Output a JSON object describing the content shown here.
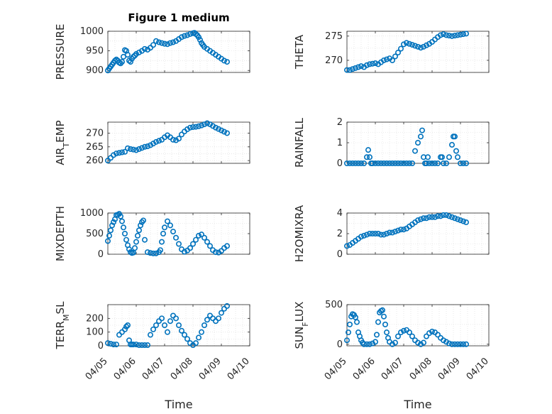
{
  "figure": {
    "title": "Figure 1 medium",
    "marker_color": "#0072BD",
    "grid_color": "#d9d9d9",
    "axis_color": "#262626"
  },
  "x_ticks": [
    "04/05",
    "04/06",
    "04/07",
    "04/08",
    "04/09",
    "04/10"
  ],
  "x_label": "Time",
  "chart_data": [
    {
      "type": "scatter",
      "ylabel": "PRESSURE",
      "ylim": [
        895,
        1000
      ],
      "yticks": [
        900,
        950,
        1000
      ],
      "xlim": [
        0,
        5
      ],
      "x": [
        0,
        0.05,
        0.1,
        0.15,
        0.2,
        0.25,
        0.3,
        0.35,
        0.4,
        0.45,
        0.5,
        0.55,
        0.6,
        0.65,
        0.7,
        0.75,
        0.8,
        0.85,
        0.9,
        0.95,
        1.0,
        1.1,
        1.2,
        1.3,
        1.4,
        1.5,
        1.6,
        1.7,
        1.8,
        1.9,
        2.0,
        2.1,
        2.2,
        2.3,
        2.4,
        2.5,
        2.6,
        2.7,
        2.8,
        2.9,
        3.0,
        3.05,
        3.1,
        3.15,
        3.2,
        3.25,
        3.3,
        3.35,
        3.4,
        3.5,
        3.6,
        3.7,
        3.8,
        3.9,
        4.0,
        4.1,
        4.2
      ],
      "y": [
        900,
        905,
        910,
        915,
        920,
        925,
        928,
        925,
        920,
        918,
        922,
        935,
        952,
        950,
        940,
        925,
        922,
        930,
        935,
        938,
        942,
        946,
        950,
        955,
        953,
        958,
        965,
        975,
        972,
        970,
        968,
        967,
        970,
        972,
        975,
        980,
        985,
        988,
        990,
        993,
        995,
        996,
        993,
        990,
        985,
        978,
        970,
        965,
        960,
        955,
        950,
        945,
        940,
        935,
        930,
        925,
        922
      ]
    },
    {
      "type": "scatter",
      "ylabel": "THETA",
      "ylim": [
        267.5,
        276
      ],
      "yticks": [
        270,
        275
      ],
      "xlim": [
        0,
        5
      ],
      "x": [
        0,
        0.1,
        0.2,
        0.3,
        0.4,
        0.5,
        0.6,
        0.7,
        0.8,
        0.9,
        1.0,
        1.1,
        1.2,
        1.3,
        1.4,
        1.5,
        1.6,
        1.7,
        1.8,
        1.9,
        2.0,
        2.1,
        2.2,
        2.3,
        2.4,
        2.5,
        2.6,
        2.7,
        2.8,
        2.9,
        3.0,
        3.1,
        3.2,
        3.3,
        3.4,
        3.5,
        3.6,
        3.7,
        3.8,
        3.9,
        4.0,
        4.1,
        4.2
      ],
      "y": [
        268,
        268,
        268.2,
        268.4,
        268.6,
        268.8,
        268.6,
        269,
        269.2,
        269.3,
        269.4,
        269.2,
        269.6,
        270,
        270.2,
        270.4,
        270,
        270.8,
        271.6,
        272.4,
        273.3,
        273.6,
        273.4,
        273.2,
        273,
        272.8,
        272.6,
        272.8,
        273.1,
        273.4,
        273.8,
        274.3,
        274.8,
        275.2,
        275.4,
        275.2,
        275.1,
        275,
        275.1,
        275.2,
        275.3,
        275.4,
        275.5
      ]
    },
    {
      "type": "scatter",
      "ylabel": "AIR_TEMP",
      "ylim": [
        259,
        274
      ],
      "yticks": [
        260,
        265,
        270
      ],
      "xlim": [
        0,
        5
      ],
      "x": [
        0,
        0.1,
        0.2,
        0.3,
        0.4,
        0.5,
        0.6,
        0.7,
        0.8,
        0.9,
        1.0,
        1.1,
        1.2,
        1.3,
        1.4,
        1.5,
        1.6,
        1.7,
        1.8,
        1.9,
        2.0,
        2.1,
        2.2,
        2.3,
        2.4,
        2.5,
        2.6,
        2.7,
        2.8,
        2.9,
        3.0,
        3.1,
        3.2,
        3.3,
        3.4,
        3.5,
        3.6,
        3.7,
        3.8,
        3.9,
        4.0,
        4.1,
        4.2
      ],
      "y": [
        260,
        261,
        262,
        262.6,
        262.8,
        263,
        263.2,
        264.5,
        264.2,
        264,
        263.8,
        264.2,
        264.6,
        265,
        265.2,
        265.6,
        266.2,
        266.8,
        267.2,
        267.6,
        268.5,
        269.2,
        268.5,
        267.6,
        267.4,
        268,
        269.5,
        270.6,
        271.4,
        272,
        272.2,
        272.3,
        272.5,
        272.8,
        273.2,
        273.6,
        273.2,
        272.6,
        272,
        271.5,
        271,
        270.5,
        270
      ]
    },
    {
      "type": "scatter",
      "ylabel": "RAINFALL",
      "ylim": [
        0,
        2
      ],
      "yticks": [
        0,
        1,
        2
      ],
      "xlim": [
        0,
        5
      ],
      "x": [
        0,
        0.1,
        0.2,
        0.3,
        0.4,
        0.5,
        0.6,
        0.7,
        0.75,
        0.8,
        0.85,
        0.9,
        1.0,
        1.1,
        1.2,
        1.3,
        1.4,
        1.5,
        1.6,
        1.7,
        1.8,
        1.9,
        2.0,
        2.1,
        2.2,
        2.3,
        2.4,
        2.5,
        2.6,
        2.65,
        2.7,
        2.75,
        2.8,
        2.85,
        2.9,
        3.0,
        3.1,
        3.2,
        3.3,
        3.35,
        3.4,
        3.5,
        3.6,
        3.7,
        3.75,
        3.8,
        3.85,
        3.9,
        4.0,
        4.1,
        4.2
      ],
      "y": [
        0,
        0,
        0,
        0,
        0,
        0,
        0,
        0.3,
        0.65,
        0.3,
        0,
        0,
        0,
        0,
        0,
        0,
        0,
        0,
        0,
        0,
        0,
        0,
        0,
        0,
        0,
        0,
        0.6,
        1.0,
        1.3,
        1.6,
        0.3,
        0,
        0,
        0.3,
        0,
        0,
        0,
        0,
        0.3,
        0.3,
        0,
        0,
        0.3,
        0.9,
        1.3,
        1.3,
        0.6,
        0.3,
        0,
        0,
        0
      ]
    },
    {
      "type": "scatter",
      "ylabel": "MIXDEPTH",
      "ylim": [
        0,
        1000
      ],
      "yticks": [
        0,
        500,
        1000
      ],
      "xlim": [
        0,
        5
      ],
      "x": [
        0,
        0.05,
        0.1,
        0.15,
        0.2,
        0.25,
        0.3,
        0.35,
        0.4,
        0.45,
        0.5,
        0.55,
        0.6,
        0.65,
        0.7,
        0.75,
        0.8,
        0.85,
        0.9,
        0.95,
        1.0,
        1.05,
        1.1,
        1.15,
        1.2,
        1.25,
        1.3,
        1.4,
        1.5,
        1.6,
        1.7,
        1.8,
        1.85,
        1.9,
        1.95,
        2.0,
        2.1,
        2.2,
        2.3,
        2.4,
        2.5,
        2.6,
        2.7,
        2.8,
        2.9,
        3.0,
        3.1,
        3.2,
        3.3,
        3.4,
        3.5,
        3.6,
        3.7,
        3.8,
        3.9,
        4.0,
        4.1,
        4.2
      ],
      "y": [
        320,
        450,
        580,
        700,
        780,
        850,
        950,
        960,
        980,
        920,
        800,
        650,
        500,
        350,
        220,
        120,
        50,
        30,
        40,
        150,
        300,
        450,
        580,
        700,
        780,
        820,
        350,
        50,
        30,
        20,
        20,
        50,
        100,
        300,
        500,
        650,
        800,
        700,
        550,
        400,
        250,
        120,
        60,
        90,
        150,
        250,
        350,
        450,
        480,
        400,
        300,
        200,
        100,
        50,
        40,
        80,
        150,
        200
      ]
    },
    {
      "type": "scatter",
      "ylabel": "H2OMIXRA",
      "ylim": [
        0,
        4
      ],
      "yticks": [
        0,
        2,
        4
      ],
      "xlim": [
        0,
        5
      ],
      "x": [
        0,
        0.1,
        0.2,
        0.3,
        0.4,
        0.5,
        0.6,
        0.7,
        0.8,
        0.9,
        1.0,
        1.1,
        1.2,
        1.3,
        1.4,
        1.5,
        1.6,
        1.7,
        1.8,
        1.9,
        2.0,
        2.1,
        2.2,
        2.3,
        2.4,
        2.5,
        2.6,
        2.7,
        2.8,
        2.9,
        3.0,
        3.1,
        3.2,
        3.3,
        3.4,
        3.5,
        3.6,
        3.7,
        3.8,
        3.9,
        4.0,
        4.1,
        4.2
      ],
      "y": [
        0.8,
        0.9,
        1.1,
        1.3,
        1.5,
        1.7,
        1.8,
        1.9,
        2.0,
        2.0,
        2.0,
        2.0,
        1.9,
        1.9,
        2.0,
        2.1,
        2.1,
        2.2,
        2.3,
        2.4,
        2.4,
        2.5,
        2.7,
        2.9,
        3.1,
        3.3,
        3.4,
        3.5,
        3.5,
        3.6,
        3.6,
        3.6,
        3.7,
        3.7,
        3.8,
        3.8,
        3.7,
        3.6,
        3.5,
        3.4,
        3.3,
        3.2,
        3.1
      ]
    },
    {
      "type": "scatter",
      "ylabel": "TERR_MSL",
      "ylim": [
        0,
        300
      ],
      "yticks": [
        0,
        100,
        200
      ],
      "xlim": [
        0,
        5
      ],
      "x": [
        0,
        0.1,
        0.2,
        0.3,
        0.4,
        0.5,
        0.6,
        0.65,
        0.7,
        0.75,
        0.8,
        0.85,
        0.9,
        1.0,
        1.1,
        1.2,
        1.3,
        1.4,
        1.5,
        1.6,
        1.7,
        1.8,
        1.9,
        2.0,
        2.1,
        2.2,
        2.3,
        2.4,
        2.5,
        2.6,
        2.7,
        2.8,
        2.9,
        3.0,
        3.1,
        3.2,
        3.3,
        3.4,
        3.5,
        3.6,
        3.7,
        3.8,
        3.9,
        4.0,
        4.1,
        4.2
      ],
      "y": [
        20,
        15,
        10,
        10,
        80,
        100,
        120,
        140,
        150,
        40,
        10,
        10,
        10,
        10,
        5,
        5,
        5,
        5,
        80,
        120,
        150,
        180,
        200,
        150,
        100,
        180,
        220,
        200,
        150,
        110,
        80,
        50,
        20,
        5,
        20,
        60,
        100,
        150,
        190,
        220,
        200,
        180,
        200,
        240,
        270,
        290
      ]
    },
    {
      "type": "scatter",
      "ylabel": "SUN_FLUX",
      "ylim": [
        -20,
        500
      ],
      "yticks": [
        0,
        500
      ],
      "xlim": [
        0,
        5
      ],
      "x": [
        0,
        0.05,
        0.1,
        0.15,
        0.2,
        0.25,
        0.3,
        0.35,
        0.4,
        0.45,
        0.5,
        0.55,
        0.6,
        0.7,
        0.8,
        0.9,
        1.0,
        1.05,
        1.1,
        1.15,
        1.2,
        1.25,
        1.3,
        1.35,
        1.4,
        1.45,
        1.5,
        1.6,
        1.7,
        1.8,
        1.9,
        2.0,
        2.1,
        2.2,
        2.3,
        2.4,
        2.5,
        2.6,
        2.7,
        2.8,
        2.9,
        3.0,
        3.1,
        3.2,
        3.3,
        3.4,
        3.5,
        3.6,
        3.7,
        3.8,
        3.9,
        4.0,
        4.1,
        4.2
      ],
      "y": [
        50,
        150,
        250,
        350,
        380,
        370,
        340,
        280,
        150,
        100,
        50,
        20,
        0,
        0,
        0,
        10,
        30,
        120,
        280,
        400,
        420,
        430,
        350,
        250,
        150,
        80,
        30,
        0,
        20,
        100,
        150,
        170,
        180,
        150,
        100,
        50,
        20,
        0,
        20,
        100,
        140,
        160,
        150,
        120,
        80,
        50,
        30,
        10,
        0,
        0,
        0,
        0,
        0,
        0
      ]
    }
  ]
}
